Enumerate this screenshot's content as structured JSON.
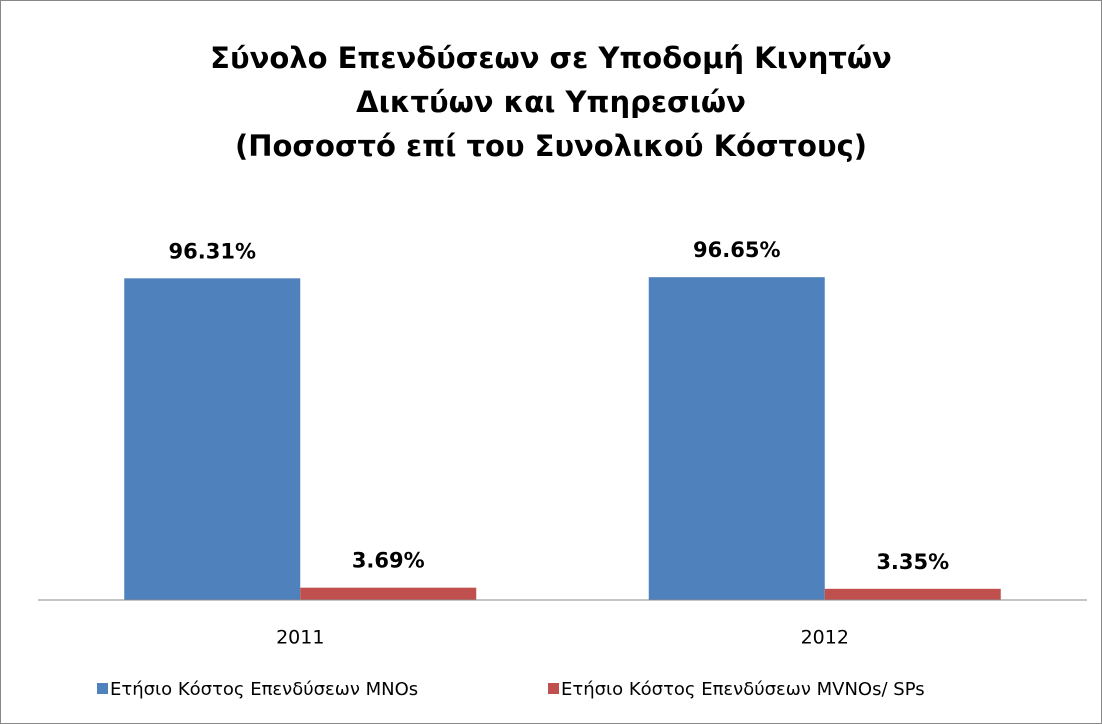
{
  "chart_data": {
    "type": "bar",
    "title": [
      "Σύνολο Επενδύσεων σε Υποδομή  Κινητών",
      "Δικτύων και Υπηρεσιών",
      "(Ποσοστό επί του Συνολικού Κόστους)"
    ],
    "categories": [
      "2011",
      "2012"
    ],
    "series": [
      {
        "name": "Ετήσιο Κόστος Επενδύσεων MNOs",
        "color": "#4f81bd",
        "values": [
          96.31,
          96.65
        ],
        "value_labels": [
          "96.31%",
          "96.65%"
        ]
      },
      {
        "name": "Ετήσιο Κόστος Επενδύσεων MVNOs/ SPs",
        "color": "#c0504d",
        "values": [
          3.69,
          3.35
        ],
        "value_labels": [
          "3.69%",
          "3.35%"
        ]
      }
    ],
    "ylim": [
      0,
      100
    ],
    "grid": false,
    "legend": "bottom"
  }
}
